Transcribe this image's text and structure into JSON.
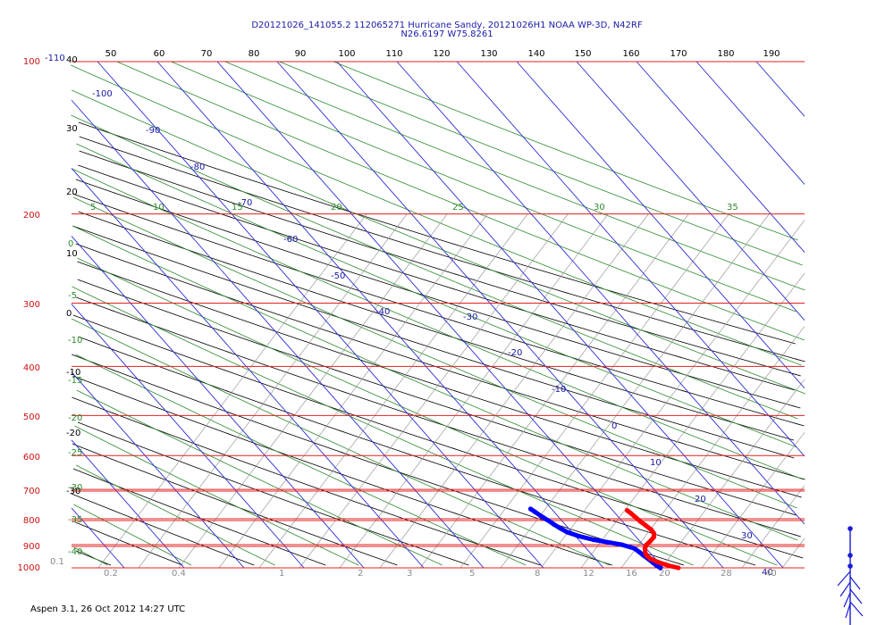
{
  "header": {
    "line1": "D20121026_141055.2 112065271 Hurricane Sandy, 20121026H1 NOAA WP-3D, N42RF",
    "line2": "N26.6197 W75.8261"
  },
  "footer": "Aspen 3.1, 26 Oct 2012  14:27 UTC",
  "chart_data": {
    "type": "skew-t",
    "title": "D20121026_141055.2 112065271 Hurricane Sandy, 20121026H1 NOAA WP-3D, N42RF",
    "pressure_levels": [
      100,
      200,
      300,
      400,
      500,
      600,
      700,
      800,
      900,
      1000
    ],
    "pressure_range": [
      100,
      1000
    ],
    "top_isotherm_labels": [
      50,
      60,
      70,
      80,
      90,
      100,
      110,
      120,
      130,
      140,
      150,
      160,
      170,
      180,
      190
    ],
    "left_side_labels": [
      "-110",
      "40",
      "30",
      "20",
      "10",
      "0",
      "-10",
      "-20",
      "-30"
    ],
    "isotherm_labels": [
      "-100",
      "-90",
      "-80",
      "-70",
      "-60",
      "-50",
      "-40",
      "-30",
      "-20",
      "-10",
      "0",
      "10",
      "20",
      "30",
      "40"
    ],
    "moist_adiabat_labels": [
      "5",
      "10",
      "15",
      "20",
      "25",
      "30",
      "35"
    ],
    "dry_adiabat_left_labels": [
      "0",
      "-5",
      "-10",
      "-15",
      "-20",
      "-25",
      "-30",
      "-35",
      "-40"
    ],
    "mixing_ratio_labels": [
      "0.1",
      "0.2",
      "0.4",
      "1",
      "2",
      "3",
      "5",
      "8",
      "12",
      "16",
      "20",
      "28",
      "40"
    ],
    "temperature_profile": {
      "name": "",
      "color": "#ff0000",
      "points": [
        [
          1000,
          22.5
        ],
        [
          990,
          21.2
        ],
        [
          975,
          20.0
        ],
        [
          960,
          19.2
        ],
        [
          945,
          19.0
        ],
        [
          930,
          19.3
        ],
        [
          915,
          19.8
        ],
        [
          900,
          20.6
        ],
        [
          885,
          21.8
        ],
        [
          870,
          22.9
        ],
        [
          855,
          23.5
        ],
        [
          840,
          23.6
        ],
        [
          825,
          23.3
        ],
        [
          810,
          23.0
        ],
        [
          795,
          22.8
        ],
        [
          780,
          22.6
        ],
        [
          770,
          22.4
        ]
      ]
    },
    "dewpoint_profile": {
      "name": "",
      "color": "#0000ff",
      "points": [
        [
          1000,
          19.5
        ],
        [
          990,
          19.2
        ],
        [
          975,
          19.0
        ],
        [
          960,
          18.8
        ],
        [
          945,
          18.5
        ],
        [
          930,
          18.3
        ],
        [
          915,
          18.0
        ],
        [
          900,
          16.5
        ],
        [
          890,
          14.5
        ],
        [
          880,
          12.5
        ],
        [
          865,
          10.5
        ],
        [
          850,
          9.2
        ],
        [
          835,
          8.6
        ],
        [
          820,
          8.1
        ],
        [
          805,
          7.7
        ],
        [
          790,
          7.2
        ],
        [
          775,
          6.8
        ],
        [
          765,
          6.5
        ]
      ]
    },
    "wind_barbs_visible": true
  }
}
